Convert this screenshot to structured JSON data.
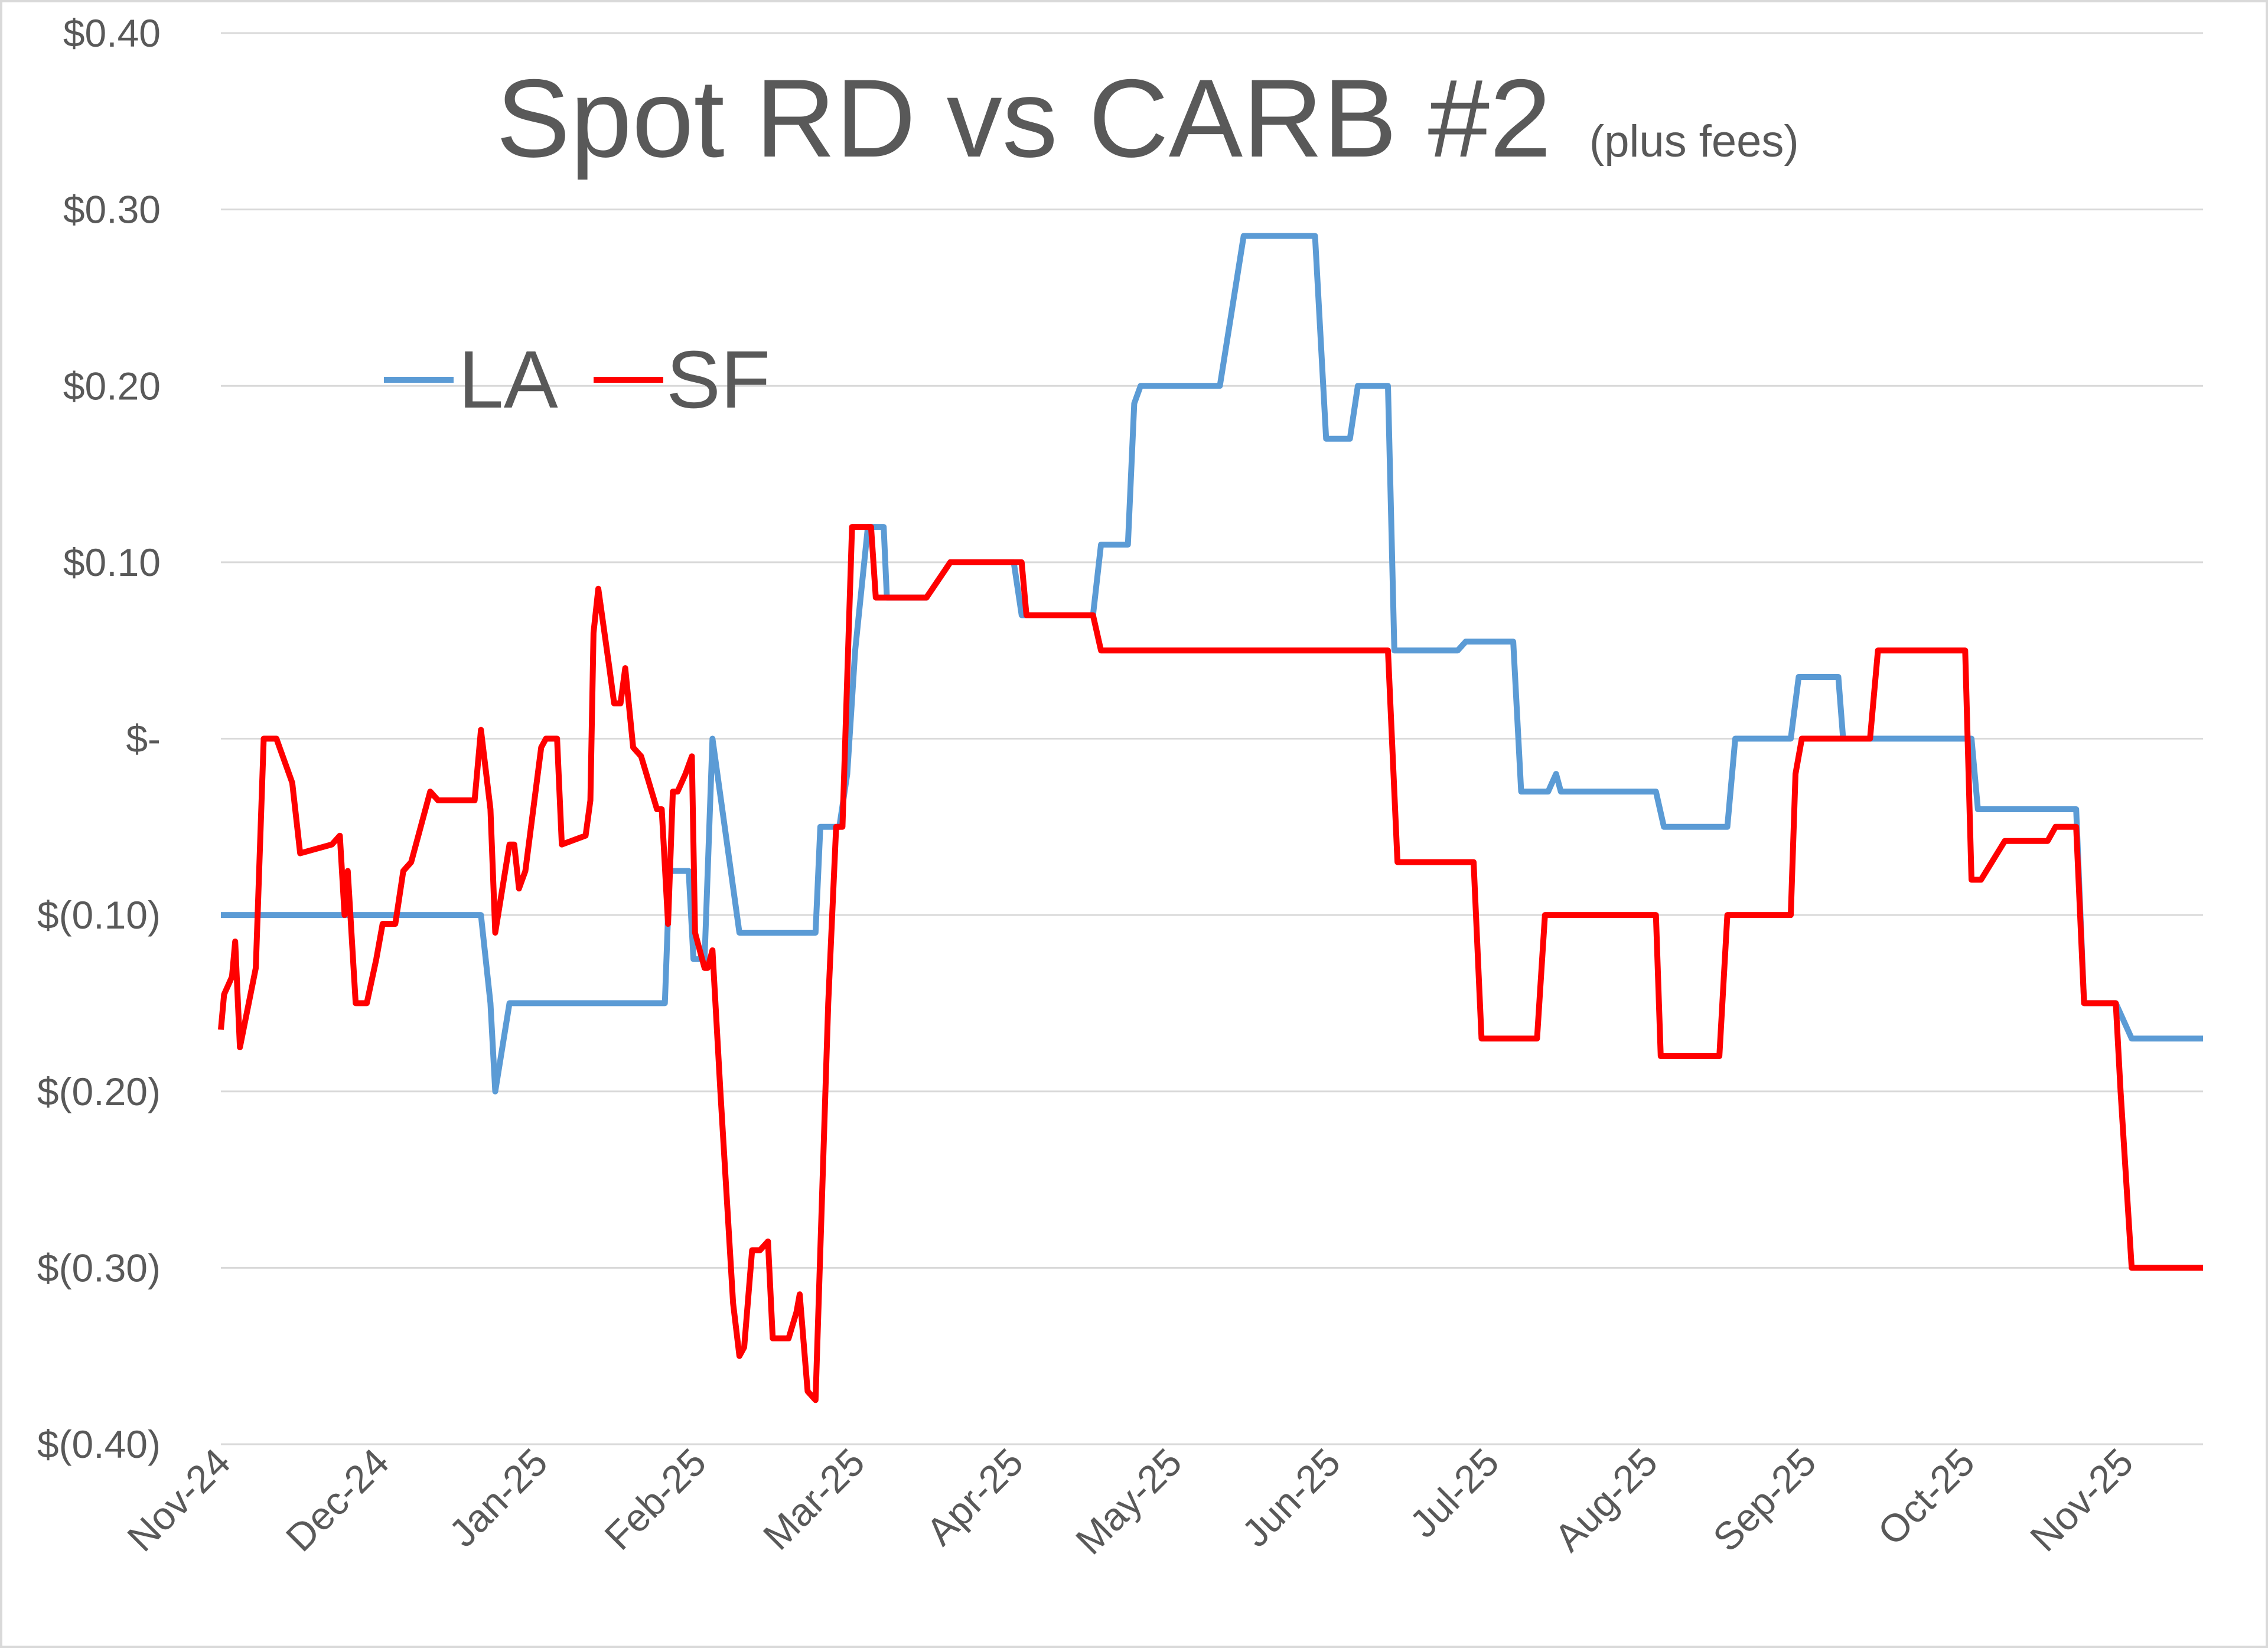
{
  "chart_data": {
    "type": "line",
    "title": "Spot RD vs CARB #2",
    "subtitle": "(plus fees)",
    "xlabel": "",
    "ylabel": "",
    "grid": true,
    "legend_position": "upper-left",
    "colors": {
      "LA": "#5B9BD5",
      "SF": "#FF0000",
      "grid": "#D9D9D9",
      "text": "#595959",
      "border": "#D9D9D9"
    },
    "x_tick_labels": [
      "Nov-24",
      "Dec-24",
      "Jan-25",
      "Feb-25",
      "Mar-25",
      "Apr-25",
      "May-25",
      "Jun-25",
      "Jul-25",
      "Aug-25",
      "Sep-25",
      "Oct-25",
      "Nov-25"
    ],
    "x_range_months": [
      0,
      12.5
    ],
    "y_tick_values": [
      0.4,
      0.3,
      0.2,
      0.1,
      0.0,
      -0.1,
      -0.2,
      -0.3,
      -0.4
    ],
    "y_tick_labels": [
      "$0.40",
      "$0.30",
      "$0.20",
      "$0.10",
      "$-",
      "$(0.10)",
      "$(0.20)",
      "$(0.30)",
      "$(0.40)"
    ],
    "ylim": [
      -0.4,
      0.4
    ],
    "series": [
      {
        "name": "LA",
        "points": [
          [
            0.0,
            -0.1
          ],
          [
            1.2,
            -0.1
          ],
          [
            1.5,
            -0.1
          ],
          [
            1.64,
            -0.1
          ],
          [
            1.7,
            -0.15
          ],
          [
            1.73,
            -0.2
          ],
          [
            1.82,
            -0.15
          ],
          [
            2.8,
            -0.15
          ],
          [
            2.83,
            -0.075
          ],
          [
            2.95,
            -0.075
          ],
          [
            2.98,
            -0.125
          ],
          [
            3.05,
            -0.125
          ],
          [
            3.1,
            0.0
          ],
          [
            3.27,
            -0.11
          ],
          [
            3.75,
            -0.11
          ],
          [
            3.78,
            -0.05
          ],
          [
            3.9,
            -0.05
          ],
          [
            3.95,
            -0.02
          ],
          [
            4.0,
            0.05
          ],
          [
            4.08,
            0.12
          ],
          [
            4.18,
            0.12
          ],
          [
            4.2,
            0.08
          ],
          [
            4.3,
            0.08
          ],
          [
            4.45,
            0.08
          ],
          [
            4.6,
            0.1
          ],
          [
            5.0,
            0.1
          ],
          [
            5.05,
            0.07
          ],
          [
            5.5,
            0.07
          ],
          [
            5.55,
            0.11
          ],
          [
            5.72,
            0.11
          ],
          [
            5.76,
            0.19
          ],
          [
            5.8,
            0.2
          ],
          [
            6.3,
            0.2
          ],
          [
            6.45,
            0.285
          ],
          [
            6.9,
            0.285
          ],
          [
            6.97,
            0.17
          ],
          [
            7.12,
            0.17
          ],
          [
            7.17,
            0.2
          ],
          [
            7.36,
            0.2
          ],
          [
            7.4,
            0.05
          ],
          [
            7.8,
            0.05
          ],
          [
            7.85,
            0.055
          ],
          [
            8.15,
            0.055
          ],
          [
            8.2,
            -0.03
          ],
          [
            8.37,
            -0.03
          ],
          [
            8.42,
            -0.02
          ],
          [
            8.45,
            -0.03
          ],
          [
            9.05,
            -0.03
          ],
          [
            9.1,
            -0.05
          ],
          [
            9.5,
            -0.05
          ],
          [
            9.55,
            0.0
          ],
          [
            9.9,
            0.0
          ],
          [
            9.95,
            0.035
          ],
          [
            10.2,
            0.035
          ],
          [
            10.23,
            0.0
          ],
          [
            11.04,
            0.0
          ],
          [
            11.08,
            -0.04
          ],
          [
            11.7,
            -0.04
          ],
          [
            11.75,
            -0.15
          ],
          [
            11.95,
            -0.15
          ],
          [
            12.05,
            -0.17
          ],
          [
            12.5,
            -0.17
          ]
        ]
      },
      {
        "name": "SF",
        "points": [
          [
            0.0,
            -0.165
          ],
          [
            0.02,
            -0.145
          ],
          [
            0.07,
            -0.135
          ],
          [
            0.09,
            -0.115
          ],
          [
            0.12,
            -0.175
          ],
          [
            0.22,
            -0.13
          ],
          [
            0.27,
            0.0
          ],
          [
            0.35,
            0.0
          ],
          [
            0.45,
            -0.025
          ],
          [
            0.5,
            -0.065
          ],
          [
            0.7,
            -0.06
          ],
          [
            0.75,
            -0.055
          ],
          [
            0.78,
            -0.1
          ],
          [
            0.8,
            -0.075
          ],
          [
            0.85,
            -0.15
          ],
          [
            0.92,
            -0.15
          ],
          [
            0.98,
            -0.125
          ],
          [
            1.02,
            -0.105
          ],
          [
            1.1,
            -0.105
          ],
          [
            1.15,
            -0.075
          ],
          [
            1.2,
            -0.07
          ],
          [
            1.32,
            -0.03
          ],
          [
            1.37,
            -0.035
          ],
          [
            1.6,
            -0.035
          ],
          [
            1.64,
            0.005
          ],
          [
            1.7,
            -0.04
          ],
          [
            1.73,
            -0.11
          ],
          [
            1.82,
            -0.06
          ],
          [
            1.85,
            -0.06
          ],
          [
            1.88,
            -0.085
          ],
          [
            1.92,
            -0.075
          ],
          [
            2.02,
            -0.005
          ],
          [
            2.05,
            0.0
          ],
          [
            2.12,
            0.0
          ],
          [
            2.15,
            -0.06
          ],
          [
            2.3,
            -0.055
          ],
          [
            2.33,
            -0.035
          ],
          [
            2.35,
            0.06
          ],
          [
            2.38,
            0.085
          ],
          [
            2.45,
            0.04
          ],
          [
            2.48,
            0.02
          ],
          [
            2.52,
            0.02
          ],
          [
            2.55,
            0.04
          ],
          [
            2.6,
            -0.005
          ],
          [
            2.65,
            -0.01
          ],
          [
            2.75,
            -0.04
          ],
          [
            2.78,
            -0.04
          ],
          [
            2.82,
            -0.105
          ],
          [
            2.85,
            -0.03
          ],
          [
            2.88,
            -0.03
          ],
          [
            2.93,
            -0.02
          ],
          [
            2.97,
            -0.01
          ],
          [
            2.99,
            -0.11
          ],
          [
            3.02,
            -0.12
          ],
          [
            3.05,
            -0.13
          ],
          [
            3.07,
            -0.13
          ],
          [
            3.1,
            -0.12
          ],
          [
            3.15,
            -0.2
          ],
          [
            3.23,
            -0.32
          ],
          [
            3.27,
            -0.35
          ],
          [
            3.3,
            -0.345
          ],
          [
            3.35,
            -0.29
          ],
          [
            3.4,
            -0.29
          ],
          [
            3.45,
            -0.285
          ],
          [
            3.48,
            -0.34
          ],
          [
            3.58,
            -0.34
          ],
          [
            3.63,
            -0.325
          ],
          [
            3.65,
            -0.315
          ],
          [
            3.7,
            -0.37
          ],
          [
            3.75,
            -0.375
          ],
          [
            3.83,
            -0.15
          ],
          [
            3.88,
            -0.05
          ],
          [
            3.92,
            -0.05
          ],
          [
            3.98,
            0.12
          ],
          [
            4.1,
            0.12
          ],
          [
            4.13,
            0.08
          ],
          [
            4.18,
            0.08
          ],
          [
            4.45,
            0.08
          ],
          [
            4.6,
            0.1
          ],
          [
            5.05,
            0.1
          ],
          [
            5.08,
            0.07
          ],
          [
            5.5,
            0.07
          ],
          [
            5.55,
            0.05
          ],
          [
            7.36,
            0.05
          ],
          [
            7.42,
            -0.07
          ],
          [
            7.9,
            -0.07
          ],
          [
            7.95,
            -0.17
          ],
          [
            8.3,
            -0.17
          ],
          [
            8.35,
            -0.1
          ],
          [
            9.05,
            -0.1
          ],
          [
            9.08,
            -0.18
          ],
          [
            9.45,
            -0.18
          ],
          [
            9.5,
            -0.1
          ],
          [
            9.9,
            -0.1
          ],
          [
            9.93,
            -0.02
          ],
          [
            9.97,
            0.0
          ],
          [
            10.4,
            0.0
          ],
          [
            10.45,
            0.05
          ],
          [
            11.0,
            0.05
          ],
          [
            11.04,
            -0.08
          ],
          [
            11.1,
            -0.08
          ],
          [
            11.25,
            -0.058
          ],
          [
            11.52,
            -0.058
          ],
          [
            11.57,
            -0.05
          ],
          [
            11.7,
            -0.05
          ],
          [
            11.75,
            -0.15
          ],
          [
            11.95,
            -0.15
          ],
          [
            11.98,
            -0.2
          ],
          [
            12.05,
            -0.3
          ],
          [
            12.5,
            -0.3
          ]
        ]
      }
    ]
  }
}
